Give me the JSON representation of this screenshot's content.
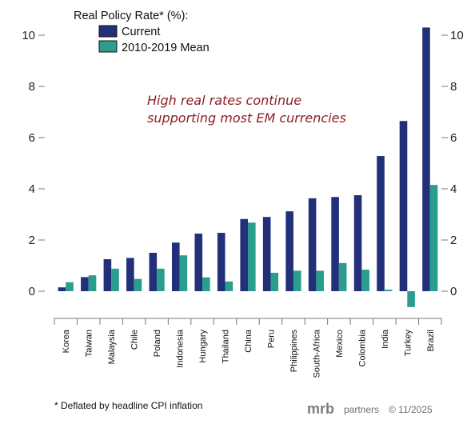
{
  "chart_data": {
    "type": "bar",
    "title": "Real Policy Rate* (%):",
    "categories": [
      "Korea",
      "Taiwan",
      "Malaysia",
      "Chile",
      "Poland",
      "Indonesia",
      "Hungary",
      "Thailand",
      "China",
      "Peru",
      "Philippines",
      "South-Africa",
      "Mexico",
      "Colombia",
      "India",
      "Turkey",
      "Brazil"
    ],
    "series": [
      {
        "name": "Current",
        "color": "#22307a",
        "values": [
          0.15,
          0.55,
          1.25,
          1.3,
          1.5,
          1.9,
          2.25,
          2.28,
          2.82,
          2.9,
          3.12,
          3.63,
          3.68,
          3.75,
          5.28,
          6.65,
          10.3
        ]
      },
      {
        "name": "2010-2019 Mean",
        "color": "#2a9d8f",
        "values": [
          0.35,
          0.62,
          0.88,
          0.48,
          0.88,
          1.4,
          0.54,
          0.38,
          2.68,
          0.72,
          0.8,
          0.8,
          1.1,
          0.84,
          0.06,
          -0.62,
          4.15
        ]
      }
    ],
    "ylim": [
      -1,
      10.6
    ],
    "yticks": [
      0,
      2,
      4,
      6,
      8,
      10
    ],
    "axis_left_ticks": [
      "0",
      "2",
      "4",
      "6",
      "8",
      "10"
    ],
    "axis_right_ticks": [
      "0",
      "2",
      "4",
      "6",
      "8",
      "10"
    ],
    "annotation": [
      "High real rates continue",
      "supporting most EM currencies"
    ],
    "footnote": "* Deflated by headline CPI inflation",
    "brand": {
      "logo": "mrb",
      "name": "partners",
      "copyright": "© 11/2025"
    }
  }
}
